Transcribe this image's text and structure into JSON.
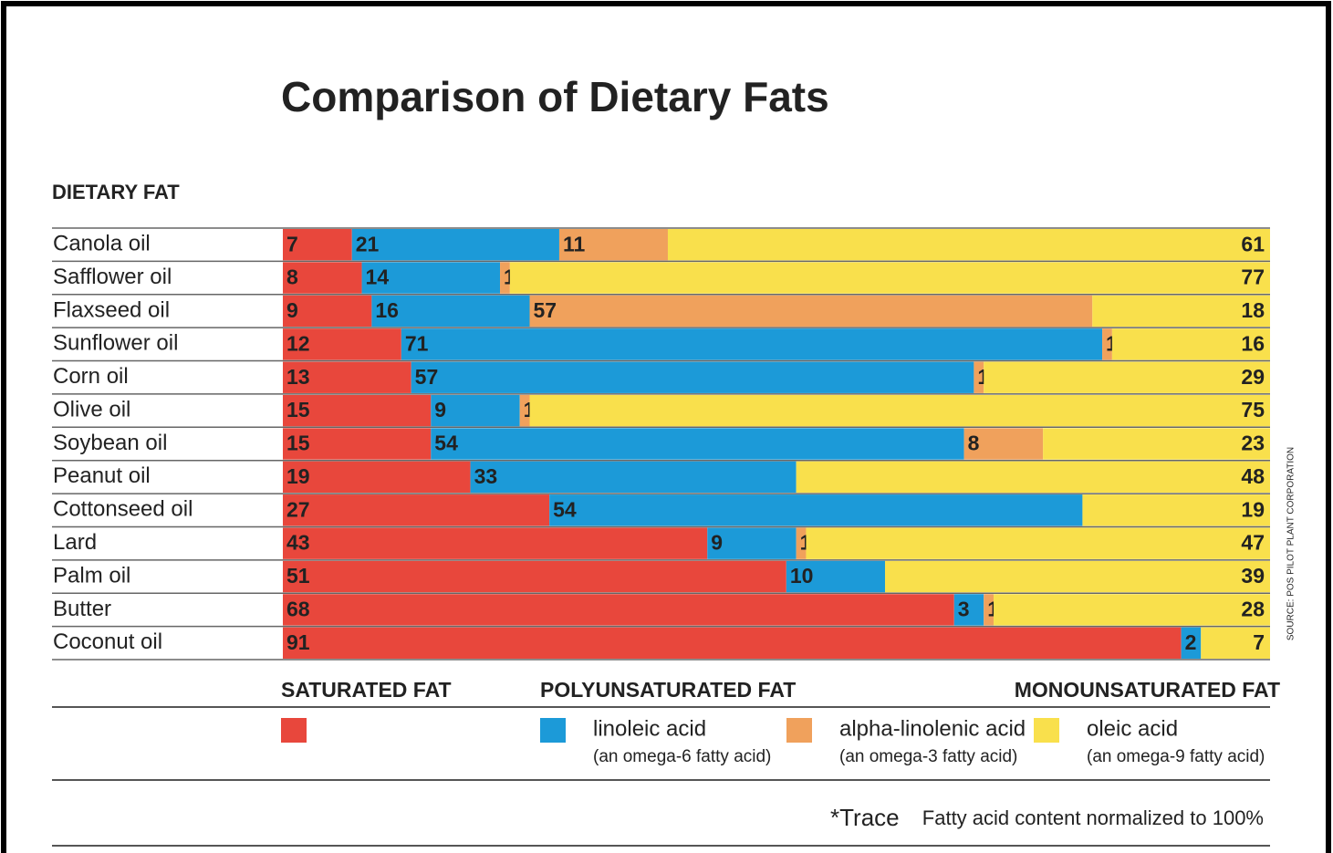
{
  "chart_data": {
    "type": "stacked-bar",
    "orientation": "horizontal",
    "title": "Comparison of Dietary Fats",
    "y_label": "DIETARY FAT",
    "categories": [
      "Canola oil",
      "Safflower oil",
      "Flaxseed oil",
      "Sunflower oil",
      "Corn oil",
      "Olive oil",
      "Soybean oil",
      "Peanut oil",
      "Cottonseed oil",
      "Lard",
      "Palm oil",
      "Butter",
      "Coconut oil"
    ],
    "xlim": [
      0,
      100
    ],
    "series": [
      {
        "name": "SATURATED FAT",
        "color": "#e8473c",
        "values": [
          7,
          8,
          9,
          12,
          13,
          15,
          15,
          19,
          27,
          43,
          51,
          68,
          91
        ]
      },
      {
        "name": "linoleic acid",
        "note": "(an omega-6 fatty acid)",
        "group": "POLYUNSATURATED FAT",
        "color": "#1c9ad8",
        "values": [
          21,
          14,
          16,
          71,
          57,
          9,
          54,
          33,
          54,
          9,
          10,
          3,
          2
        ]
      },
      {
        "name": "alpha-linolenic acid",
        "note": "(an omega-3 fatty acid)",
        "group": "POLYUNSATURATED FAT",
        "color": "#f0a15c",
        "values": [
          11,
          1,
          57,
          1,
          1,
          1,
          8,
          0,
          0,
          1,
          0,
          1,
          null
        ],
        "value_labels": [
          "11",
          "1",
          "57",
          "1",
          "1",
          "1",
          "8",
          "*",
          "*",
          "1",
          "*",
          "1",
          null
        ]
      },
      {
        "name": "oleic acid",
        "note": "(an omega-9 fatty acid)",
        "group": "MONOUNSATURATED FAT",
        "color": "#f9e04c",
        "values": [
          61,
          77,
          18,
          16,
          29,
          75,
          23,
          48,
          19,
          47,
          39,
          28,
          7
        ]
      }
    ],
    "footnote": "*Trace",
    "note": "Fatty acid content normalized to 100%",
    "source": "SOURCE: POS PILOT PLANT CORPORATION"
  }
}
